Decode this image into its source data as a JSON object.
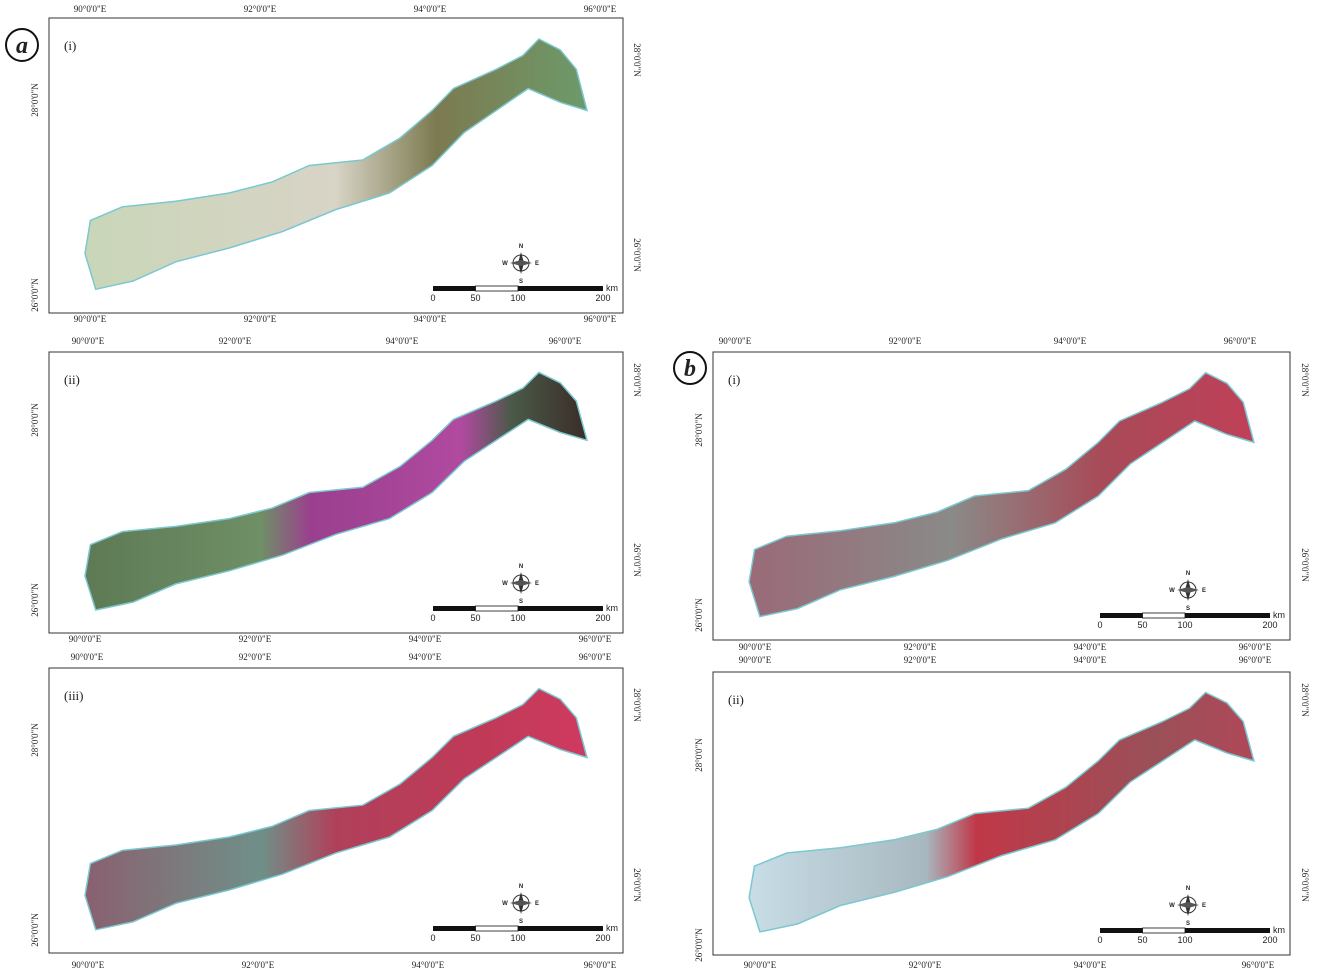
{
  "figure_labels": [
    "a",
    "b"
  ],
  "panels": [
    {
      "label": "(i)",
      "top_lon": [
        "90°0'0\"E",
        "92°0'0\"E",
        "94°0'0\"E",
        "96°0'0\"E"
      ],
      "bottom_lon": [
        "90°0'0\"E",
        "92°0'0\"E",
        "94°0'0\"E",
        "96°0'0\"E"
      ],
      "left_lat": [
        "28°0'0\"N",
        "26°0'0\"N"
      ],
      "right_lat": [
        "28°0'0\"N",
        "26°0'0\"N"
      ]
    },
    {
      "label": "(ii)",
      "top_lon": [
        "90°0'0\"E",
        "92°0'0\"E",
        "94°0'0\"E",
        "96°0'0\"E"
      ],
      "bottom_lon": [
        "90°0'0\"E",
        "92°0'0\"E",
        "94°0'0\"E",
        "96°0'0\"E"
      ],
      "left_lat": [
        "28°0'0\"N",
        "26°0'0\"N"
      ],
      "right_lat": [
        "28°0'0\"N",
        "26°0'0\"N"
      ]
    },
    {
      "label": "(iii)",
      "top_lon": [
        "90°0'0\"E",
        "92°0'0\"E",
        "94°0'0\"E",
        "96°0'0\"E"
      ],
      "bottom_lon": [
        "90°0'0\"E",
        "92°0'0\"E",
        "94°0'0\"E",
        "96°0'0\"E"
      ],
      "left_lat": [
        "28°0'0\"N",
        "26°0'0\"N"
      ],
      "right_lat": [
        "28°0'0\"N",
        "26°0'0\"N"
      ]
    },
    {
      "label": "(i)",
      "top_lon": [
        "90°0'0\"E",
        "92°0'0\"E",
        "94°0'0\"E",
        "96°0'0\"E"
      ],
      "bottom_lon": [
        "90°0'0\"E",
        "92°0'0\"E",
        "94°0'0\"E",
        "96°0'0\"E"
      ],
      "left_lat": [
        "28°0'0\"N",
        "26°0'0\"N"
      ],
      "right_lat": [
        "28°0'0\"N",
        "26°0'0\"N"
      ]
    },
    {
      "label": "(ii)",
      "top_lon": [
        "90°0'0\"E",
        "92°0'0\"E",
        "94°0'0\"E",
        "96°0'0\"E"
      ],
      "bottom_lon": [
        "90°0'0\"E",
        "92°0'0\"E",
        "94°0'0\"E",
        "96°0'0\"E"
      ],
      "left_lat": [
        "28°0'0\"N",
        "26°0'0\"N"
      ],
      "right_lat": [
        "28°0'0\"N",
        "26°0'0\"N"
      ]
    }
  ],
  "scale_bar": {
    "labels": [
      "0",
      "50",
      "100",
      "200"
    ],
    "unit": "km"
  },
  "compass": {
    "n": "N",
    "e": "E",
    "s": "S",
    "w": "W"
  }
}
